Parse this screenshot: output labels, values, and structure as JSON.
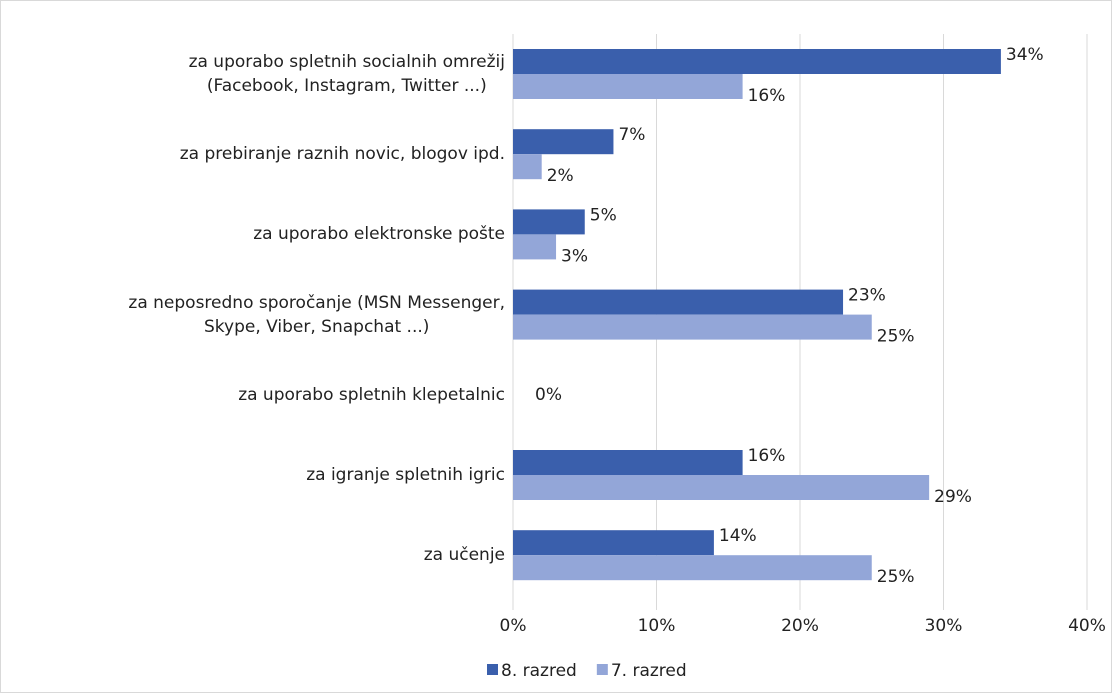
{
  "chart_data": {
    "type": "bar",
    "orientation": "horizontal",
    "categories": [
      "za uporabo spletnih socialnih omrežij\n(Facebook, Instagram, Twitter ...)",
      "za prebiranje raznih novic, blogov ipd.",
      "za uporabo elektronske pošte",
      "za neposredno sporočanje (MSN Messenger,\nSkype, Viber, Snapchat ...)",
      "za uporabo spletnih klepetalnic",
      "za igranje spletnih igric",
      "za učenje"
    ],
    "series": [
      {
        "name": "8. razred",
        "color": "#3a5fac",
        "values": [
          34,
          7,
          5,
          23,
          0,
          16,
          14
        ],
        "value_labels": [
          "34%",
          "7%",
          "5%",
          "23%",
          "0%",
          "16%",
          "14%"
        ]
      },
      {
        "name": "7. razred",
        "color": "#93a6d8",
        "values": [
          16,
          2,
          3,
          25,
          0,
          29,
          25
        ],
        "value_labels": [
          "16%",
          "2%",
          "3%",
          "25%",
          null,
          "29%",
          "25%"
        ]
      }
    ],
    "xlim": [
      0,
      40
    ],
    "xticks": [
      {
        "value": 0,
        "label": "0%"
      },
      {
        "value": 10,
        "label": "10%"
      },
      {
        "value": 20,
        "label": "20%"
      },
      {
        "value": 30,
        "label": "30%"
      },
      {
        "value": 40,
        "label": "40%"
      }
    ],
    "grid": true,
    "legend": "bottom"
  }
}
